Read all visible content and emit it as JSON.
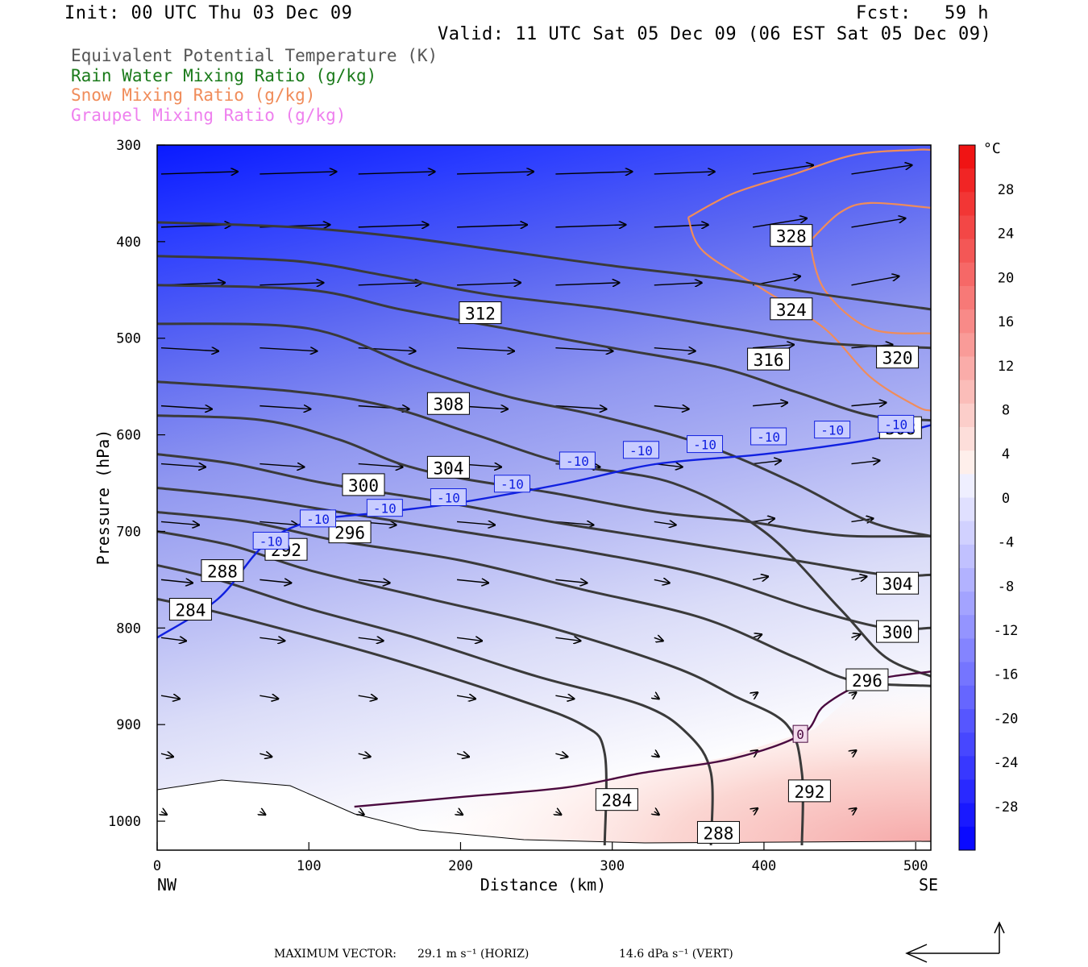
{
  "header": {
    "init": "Init: 00 UTC Thu 03 Dec 09",
    "fcst": "Fcst:   59 h",
    "valid": "Valid: 11 UTC Sat 05 Dec 09 (06 EST Sat 05 Dec 09)"
  },
  "legend": [
    {
      "label": "Equivalent Potential Temperature (K)",
      "color": "#555555"
    },
    {
      "label": "Rain Water Mixing Ratio (g/kg)",
      "color": "#1a7a1a"
    },
    {
      "label": "Snow Mixing Ratio (g/kg)",
      "color": "#f08c5a"
    },
    {
      "label": "Graupel Mixing Ratio (g/kg)",
      "color": "#ee80ee"
    }
  ],
  "chart_data": {
    "type": "cross-section",
    "xlabel": "Distance (km)",
    "ylabel": "Pressure (hPa)",
    "x_ticks": [
      0,
      100,
      200,
      300,
      400,
      500
    ],
    "x_range": [
      0,
      510
    ],
    "x_end_labels": {
      "left": "NW",
      "right": "SE"
    },
    "y_ticks": [
      300,
      400,
      500,
      600,
      700,
      800,
      900,
      1000
    ],
    "y_range": [
      300,
      1030
    ],
    "colorbar": {
      "unit": "°C",
      "labels": [
        28,
        24,
        20,
        16,
        12,
        8,
        4,
        0,
        -4,
        -8,
        -12,
        -16,
        -20,
        -24,
        -28
      ]
    },
    "theta_e_contours": [
      {
        "value": 284,
        "points": [
          [
            0,
            770
          ],
          [
            30,
            780
          ],
          [
            80,
            800
          ],
          [
            150,
            830
          ],
          [
            230,
            870
          ],
          [
            280,
            900
          ],
          [
            295,
            930
          ],
          [
            295,
            1025
          ]
        ],
        "labels": [
          [
            22,
            781
          ],
          [
            303,
            978
          ]
        ]
      },
      {
        "value": 288,
        "points": [
          [
            0,
            735
          ],
          [
            40,
            750
          ],
          [
            100,
            780
          ],
          [
            170,
            810
          ],
          [
            250,
            850
          ],
          [
            320,
            880
          ],
          [
            350,
            910
          ],
          [
            365,
            950
          ],
          [
            365,
            1025
          ]
        ],
        "labels": [
          [
            43,
            741
          ],
          [
            370,
            1012
          ]
        ]
      },
      {
        "value": 292,
        "points": [
          [
            0,
            700
          ],
          [
            50,
            715
          ],
          [
            100,
            740
          ],
          [
            180,
            770
          ],
          [
            260,
            800
          ],
          [
            340,
            840
          ],
          [
            380,
            870
          ],
          [
            415,
            900
          ],
          [
            425,
            950
          ],
          [
            425,
            1025
          ]
        ],
        "labels": [
          [
            85,
            719
          ],
          [
            430,
            969
          ]
        ]
      },
      {
        "value": 296,
        "points": [
          [
            0,
            680
          ],
          [
            60,
            690
          ],
          [
            120,
            710
          ],
          [
            200,
            730
          ],
          [
            280,
            760
          ],
          [
            360,
            790
          ],
          [
            420,
            830
          ],
          [
            460,
            855
          ],
          [
            510,
            860
          ]
        ],
        "labels": [
          [
            127,
            701
          ],
          [
            468,
            854
          ]
        ]
      },
      {
        "value": 300,
        "points": [
          [
            0,
            655
          ],
          [
            60,
            665
          ],
          [
            120,
            680
          ],
          [
            200,
            700
          ],
          [
            280,
            720
          ],
          [
            360,
            745
          ],
          [
            430,
            780
          ],
          [
            480,
            800
          ],
          [
            510,
            800
          ]
        ],
        "labels": [
          [
            136,
            652
          ],
          [
            488,
            804
          ]
        ]
      },
      {
        "value": 304,
        "points": [
          [
            0,
            620
          ],
          [
            50,
            630
          ],
          [
            110,
            650
          ],
          [
            190,
            670
          ],
          [
            260,
            690
          ],
          [
            340,
            710
          ],
          [
            420,
            730
          ],
          [
            480,
            745
          ],
          [
            510,
            745
          ]
        ],
        "labels": [
          [
            192,
            634
          ],
          [
            488,
            754
          ]
        ]
      },
      {
        "value": 308,
        "points": [
          [
            0,
            580
          ],
          [
            70,
            585
          ],
          [
            120,
            605
          ],
          [
            160,
            630
          ],
          [
            200,
            645
          ],
          [
            260,
            660
          ],
          [
            330,
            680
          ],
          [
            390,
            690
          ],
          [
            430,
            700
          ],
          [
            460,
            705
          ],
          [
            510,
            705
          ]
        ],
        "labels": [
          [
            192,
            568
          ],
          [
            490,
            593
          ]
        ]
      },
      {
        "value": 312,
        "points": [
          [
            0,
            545
          ],
          [
            90,
            555
          ],
          [
            150,
            570
          ],
          [
            210,
            600
          ],
          [
            270,
            630
          ],
          [
            340,
            650
          ],
          [
            400,
            700
          ],
          [
            450,
            780
          ],
          [
            480,
            830
          ],
          [
            510,
            850
          ]
        ],
        "labels": [
          [
            213,
            474
          ]
        ]
      },
      {
        "value": 316,
        "points": [
          [
            0,
            485
          ],
          [
            100,
            490
          ],
          [
            170,
            530
          ],
          [
            230,
            560
          ],
          [
            290,
            580
          ],
          [
            360,
            610
          ],
          [
            420,
            650
          ],
          [
            470,
            690
          ],
          [
            510,
            705
          ]
        ],
        "labels": [
          [
            403,
            522
          ]
        ]
      },
      {
        "value": 320,
        "points": [
          [
            0,
            445
          ],
          [
            100,
            450
          ],
          [
            160,
            470
          ],
          [
            230,
            490
          ],
          [
            300,
            510
          ],
          [
            370,
            530
          ],
          [
            420,
            555
          ],
          [
            470,
            580
          ],
          [
            510,
            585
          ]
        ],
        "labels": [
          [
            488,
            520
          ]
        ]
      },
      {
        "value": 324,
        "points": [
          [
            0,
            415
          ],
          [
            90,
            420
          ],
          [
            150,
            435
          ],
          [
            220,
            455
          ],
          [
            300,
            470
          ],
          [
            380,
            490
          ],
          [
            440,
            505
          ],
          [
            510,
            510
          ]
        ],
        "labels": [
          [
            418,
            470
          ]
        ]
      },
      {
        "value": 328,
        "points": [
          [
            0,
            380
          ],
          [
            90,
            385
          ],
          [
            160,
            395
          ],
          [
            230,
            410
          ],
          [
            300,
            425
          ],
          [
            380,
            440
          ],
          [
            440,
            455
          ],
          [
            510,
            470
          ]
        ],
        "labels": [
          [
            418,
            394
          ]
        ]
      }
    ],
    "temperature_contours": [
      {
        "value": -10,
        "points": [
          [
            0,
            810
          ],
          [
            40,
            770
          ],
          [
            70,
            715
          ],
          [
            100,
            690
          ],
          [
            150,
            680
          ],
          [
            200,
            670
          ],
          [
            270,
            650
          ],
          [
            330,
            630
          ],
          [
            400,
            620
          ],
          [
            470,
            605
          ],
          [
            510,
            590
          ]
        ],
        "labels": [
          [
            75,
            710
          ],
          [
            106,
            687
          ],
          [
            150,
            676
          ],
          [
            192,
            665
          ],
          [
            234,
            651
          ],
          [
            277,
            627
          ],
          [
            319,
            616
          ],
          [
            361,
            610
          ],
          [
            403,
            602
          ],
          [
            445,
            595
          ],
          [
            487,
            589
          ]
        ]
      },
      {
        "value": 0,
        "points": [
          [
            130,
            985
          ],
          [
            200,
            975
          ],
          [
            270,
            965
          ],
          [
            320,
            950
          ],
          [
            380,
            935
          ],
          [
            425,
            910
          ],
          [
            440,
            880
          ],
          [
            470,
            855
          ],
          [
            510,
            845
          ]
        ],
        "labels": [
          [
            424,
            910
          ]
        ]
      }
    ],
    "snow_mixing_ratio_contours": [
      {
        "points": [
          [
            350,
            375
          ],
          [
            380,
            350
          ],
          [
            420,
            330
          ],
          [
            460,
            310
          ],
          [
            500,
            305
          ],
          [
            510,
            305
          ]
        ]
      },
      {
        "points": [
          [
            350,
            375
          ],
          [
            360,
            410
          ],
          [
            400,
            450
          ],
          [
            440,
            490
          ],
          [
            470,
            540
          ],
          [
            500,
            570
          ],
          [
            510,
            575
          ]
        ]
      },
      {
        "points": [
          [
            430,
            400
          ],
          [
            450,
            370
          ],
          [
            470,
            360
          ],
          [
            510,
            365
          ]
        ]
      },
      {
        "points": [
          [
            430,
            400
          ],
          [
            440,
            450
          ],
          [
            470,
            490
          ],
          [
            510,
            495
          ]
        ]
      }
    ],
    "max_vector": {
      "horizontal": "29.1 m s⁻¹ (HORIZ)",
      "vertical": "14.6 dPa s⁻¹ (VERT)",
      "label": "MAXIMUM VECTOR:"
    }
  }
}
